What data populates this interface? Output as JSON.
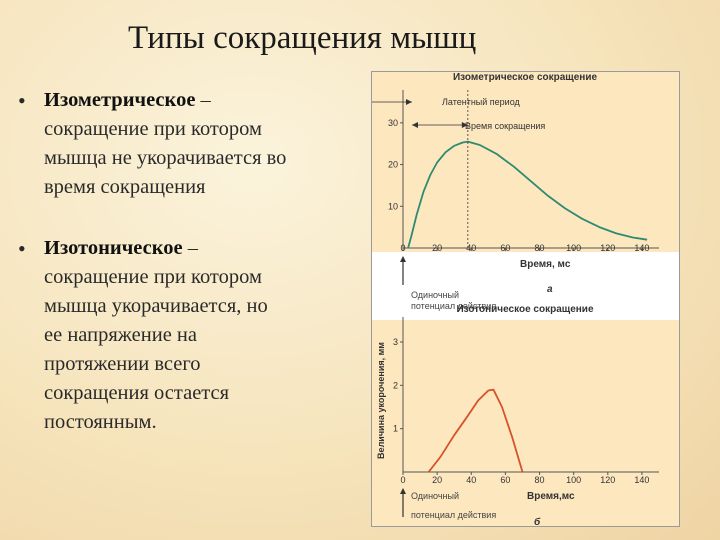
{
  "slide": {
    "title": "Типы сокращения мышц",
    "bullets": [
      {
        "term": "Изометрическое",
        "dash": " –",
        "lines": [
          "сокращение при котором",
          "мышца не укорачивается во",
          "время сокращения"
        ]
      },
      {
        "term": "Изотоническое",
        "dash": " –",
        "lines": [
          "сокращение при котором",
          "мышца укорачивается, но",
          "ее напряжение на",
          "протяжении всего",
          "сокращения остается",
          "постоянным."
        ]
      }
    ]
  },
  "chart_data": [
    {
      "type": "line",
      "title": "Изометрическое сокращение",
      "xlabel": "Время, мс",
      "x_ticks": [
        "0",
        "20",
        "40",
        "60",
        "80",
        "100",
        "120",
        "140"
      ],
      "y_ticks": [
        "10",
        "20",
        "30"
      ],
      "xlim": [
        0,
        150
      ],
      "ylim": [
        0,
        35
      ],
      "series": [
        {
          "color": "#2e8b72",
          "x": [
            3,
            5,
            8,
            12,
            16,
            20,
            25,
            30,
            35,
            38,
            45,
            55,
            65,
            75,
            85,
            95,
            105,
            115,
            125,
            135,
            143
          ],
          "y": [
            0,
            3,
            8,
            13.5,
            17.5,
            20.5,
            23,
            24.5,
            25.3,
            25.5,
            24.7,
            22.5,
            19.5,
            16,
            12.5,
            9.5,
            7,
            5,
            3.5,
            2.5,
            2
          ]
        }
      ],
      "annotations": [
        "Латентный период",
        "Время сокращения"
      ],
      "stimulus_label": [
        "Одиночный",
        "потенциал действия"
      ],
      "panel_label": "а"
    },
    {
      "type": "line",
      "title": "Изотоническое сокращение",
      "xlabel": "Время,мс",
      "ylabel": "Величина укорочения, мм",
      "x_ticks": [
        "0",
        "20",
        "40",
        "60",
        "80",
        "100",
        "120",
        "140"
      ],
      "y_ticks": [
        "1",
        "2",
        "3"
      ],
      "xlim": [
        0,
        150
      ],
      "ylim": [
        0,
        3.3
      ],
      "series": [
        {
          "color": "#d4532a",
          "x": [
            15,
            22,
            30,
            38,
            44,
            50,
            53,
            58,
            64,
            70
          ],
          "y": [
            0,
            0.35,
            0.85,
            1.3,
            1.65,
            1.88,
            1.9,
            1.5,
            0.8,
            0
          ]
        }
      ],
      "stimulus_label": [
        "Одиночный",
        "потенциал действия"
      ],
      "panel_label": "б"
    }
  ]
}
